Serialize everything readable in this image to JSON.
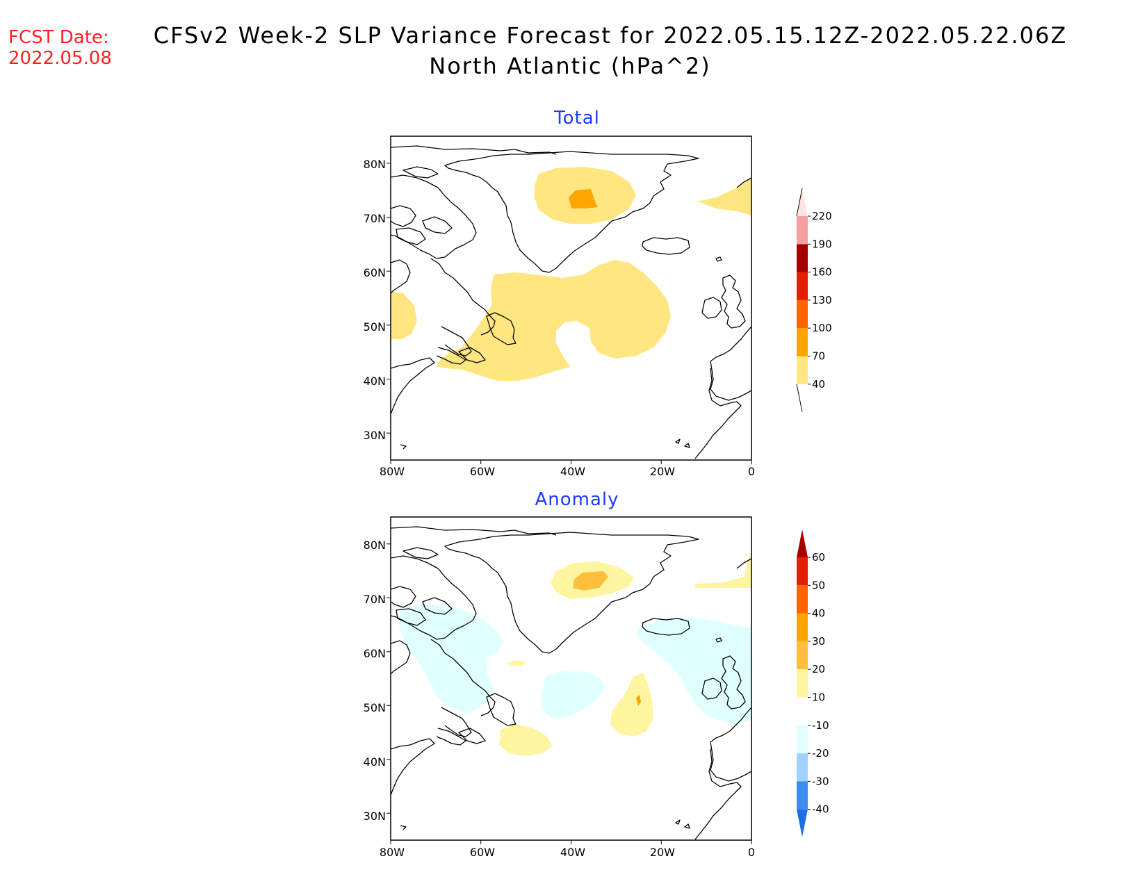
{
  "header": {
    "fcst_label": "FCST Date:",
    "fcst_date": "2022.05.08",
    "title_line1": "CFSv2 Week-2 SLP Variance Forecast for 2022.05.15.12Z-2022.05.22.06Z",
    "title_line2": "North Atlantic (hPa^2)"
  },
  "axes": {
    "lat_ticks": [
      "80N",
      "70N",
      "60N",
      "50N",
      "40N",
      "30N"
    ],
    "lat_values": [
      80,
      70,
      60,
      50,
      40,
      30
    ],
    "lon_ticks": [
      "80W",
      "60W",
      "40W",
      "20W",
      "0"
    ],
    "lon_values": [
      -80,
      -60,
      -40,
      -20,
      0
    ],
    "lon_range": [
      -80,
      0
    ],
    "lat_range": [
      25,
      85
    ]
  },
  "panels": [
    {
      "title": "Total",
      "colorbar": {
        "labels": [
          "40",
          "70",
          "100",
          "130",
          "160",
          "190",
          "220"
        ],
        "levels": [
          40,
          70,
          100,
          130,
          160,
          190,
          220
        ],
        "colors": [
          "#ffe680",
          "#ffa500",
          "#ff6400",
          "#e61e00",
          "#a50000",
          "#f5a0a0",
          "#ffe6e6"
        ]
      }
    },
    {
      "title": "Anomaly",
      "colorbar": {
        "labels": [
          "60",
          "50",
          "40",
          "30",
          "20",
          "10",
          "-10",
          "-20",
          "-30",
          "-40"
        ],
        "levels": [
          60,
          50,
          40,
          30,
          20,
          10,
          -10,
          -20,
          -30,
          -40
        ],
        "colors": [
          "#a50000",
          "#e61e00",
          "#ff6400",
          "#ffa500",
          "#ffbe3c",
          "#fff5a0",
          "#ffffff",
          "#e0ffff",
          "#a0d2ff",
          "#3c8cf0",
          "#1e6ee6"
        ]
      }
    }
  ]
}
